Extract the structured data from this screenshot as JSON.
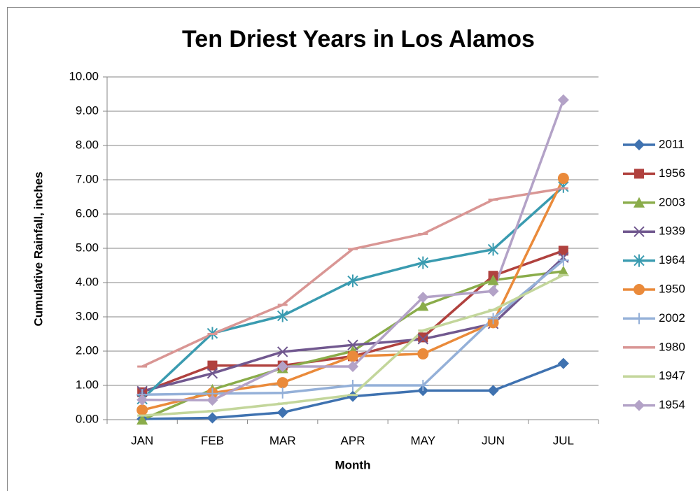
{
  "chart_data": {
    "type": "line",
    "title": "Ten Driest Years in Los Alamos",
    "x_label": "Month",
    "y_label": "Cumulative Rainfall, inches",
    "categories": [
      "JAN",
      "FEB",
      "MAR",
      "APR",
      "MAY",
      "JUN",
      "JUL"
    ],
    "ylim": [
      0,
      10
    ],
    "yticks": [
      {
        "value": 0,
        "label": "0.00"
      },
      {
        "value": 1,
        "label": "1.00"
      },
      {
        "value": 2,
        "label": "2.00"
      },
      {
        "value": 3,
        "label": "3.00"
      },
      {
        "value": 4,
        "label": "4.00"
      },
      {
        "value": 5,
        "label": "5.00"
      },
      {
        "value": 6,
        "label": "6.00"
      },
      {
        "value": 7,
        "label": "7.00"
      },
      {
        "value": 8,
        "label": "8.00"
      },
      {
        "value": 9,
        "label": "9.00"
      },
      {
        "value": 10,
        "label": "10.00"
      }
    ],
    "grid": true,
    "legend": "right",
    "series": [
      {
        "name": "2011",
        "color": "#3f72b0",
        "marker": "diamond",
        "values": [
          0.02,
          0.05,
          0.21,
          0.68,
          0.85,
          0.85,
          1.64
        ]
      },
      {
        "name": "1956",
        "color": "#b0413e",
        "marker": "square",
        "values": [
          0.8,
          1.58,
          1.58,
          1.85,
          2.4,
          4.2,
          4.93
        ]
      },
      {
        "name": "2003",
        "color": "#8aac4a",
        "marker": "triangle",
        "values": [
          0.0,
          0.88,
          1.5,
          2.0,
          3.32,
          4.07,
          4.33
        ]
      },
      {
        "name": "1939",
        "color": "#71588f",
        "marker": "x",
        "values": [
          0.83,
          1.35,
          1.98,
          2.18,
          2.35,
          2.8,
          4.73
        ]
      },
      {
        "name": "1964",
        "color": "#3a9bb0",
        "marker": "star",
        "values": [
          0.6,
          2.52,
          3.03,
          4.05,
          4.58,
          4.97,
          6.8
        ]
      },
      {
        "name": "1950",
        "color": "#ea8a3a",
        "marker": "circle",
        "values": [
          0.28,
          0.78,
          1.08,
          1.85,
          1.92,
          2.83,
          7.04
        ]
      },
      {
        "name": "2002",
        "color": "#94b0d8",
        "marker": "plus",
        "values": [
          0.73,
          0.76,
          0.78,
          1.0,
          1.0,
          2.95,
          4.65
        ]
      },
      {
        "name": "1980",
        "color": "#d99694",
        "marker": "dash",
        "values": [
          1.55,
          2.5,
          3.35,
          4.98,
          5.42,
          6.42,
          6.75
        ]
      },
      {
        "name": "1947",
        "color": "#c3d69b",
        "marker": "dash",
        "values": [
          0.12,
          0.25,
          0.47,
          0.72,
          2.6,
          3.2,
          4.22
        ]
      },
      {
        "name": "1954",
        "color": "#b3a2c7",
        "marker": "diamond",
        "values": [
          0.58,
          0.57,
          1.55,
          1.55,
          3.57,
          3.75,
          9.33
        ]
      }
    ]
  }
}
